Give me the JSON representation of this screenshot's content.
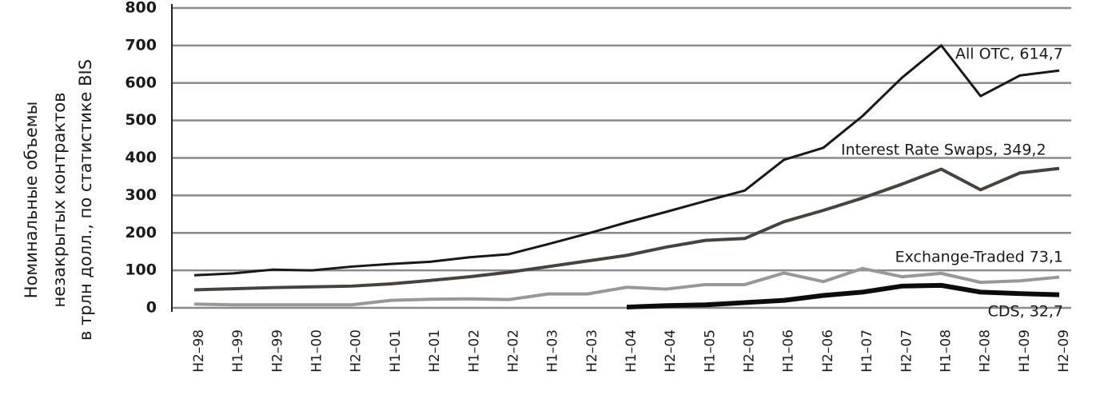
{
  "chart_data": {
    "type": "line",
    "y_label_lines": [
      "Номинальные объемы",
      "незакрытых контрактов",
      "в трлн долл., по статистике BIS"
    ],
    "categories": [
      "H2–98",
      "H1–99",
      "H2–99",
      "H1–00",
      "H2–00",
      "H1–01",
      "H2–01",
      "H1–02",
      "H2–02",
      "H1–03",
      "H2–03",
      "H1–04",
      "H2–04",
      "H1–05",
      "H2–05",
      "H1–06",
      "H2–06",
      "H1–07",
      "H2–07",
      "H1–08",
      "H2–08",
      "H1–09",
      "H2–09"
    ],
    "series": [
      {
        "name": "All OTC, 614,7",
        "color": "#1c1712",
        "line_width": 3,
        "values": [
          87,
          92,
          102,
          100,
          110,
          117,
          123,
          135,
          143,
          170,
          198,
          228,
          256,
          285,
          313,
          395,
          427,
          512,
          614,
          700,
          565,
          620,
          633
        ]
      },
      {
        "name": "Interest Rate Swaps, 349,2",
        "color": "#47423d",
        "line_width": 4,
        "values": [
          48,
          51,
          54,
          56,
          58,
          64,
          73,
          83,
          95,
          110,
          125,
          140,
          162,
          180,
          185,
          230,
          260,
          293,
          330,
          370,
          315,
          360,
          372
        ]
      },
      {
        "name": "Exchange-Traded 73,1",
        "color": "#9a9896",
        "line_width": 4,
        "values": [
          10,
          8,
          8,
          8,
          8,
          20,
          23,
          24,
          22,
          37,
          37,
          55,
          50,
          62,
          62,
          93,
          70,
          105,
          83,
          92,
          68,
          72,
          82
        ]
      },
      {
        "name": "CDS, 32,7",
        "color": "#0e0b08",
        "line_width": 6,
        "values": [
          null,
          null,
          null,
          null,
          null,
          null,
          null,
          null,
          null,
          null,
          null,
          2,
          6,
          8,
          14,
          20,
          33,
          42,
          58,
          60,
          42,
          38,
          35
        ]
      }
    ],
    "ylim": [
      0,
      800
    ],
    "yticks": [
      0,
      100,
      200,
      300,
      400,
      500,
      600,
      700,
      800
    ],
    "grid": true
  }
}
